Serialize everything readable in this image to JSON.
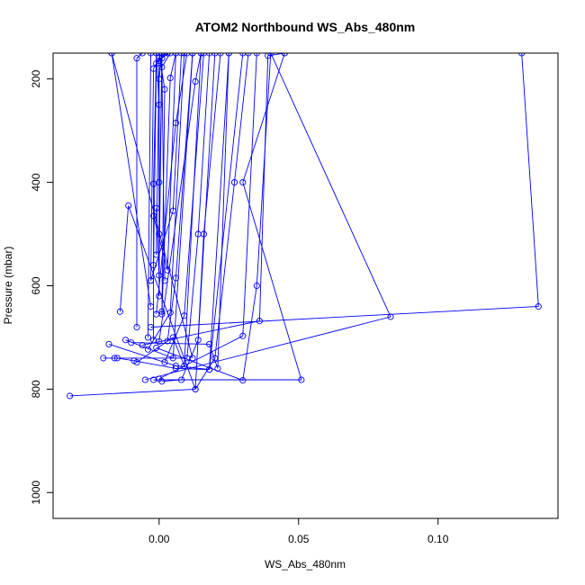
{
  "chart_data": {
    "type": "line",
    "title": "ATOM2 Northbound WS_Abs_480nm",
    "xlabel": "WS_Abs_480nm",
    "ylabel": "Pressure (mbar)",
    "xlim": [
      -0.038,
      0.143
    ],
    "ylim": [
      1050,
      150
    ],
    "y_reversed": true,
    "grid": false,
    "x_ticks": [
      {
        "value": 0.0,
        "label": "0.00"
      },
      {
        "value": 0.05,
        "label": "0.05"
      },
      {
        "value": 0.1,
        "label": "0.10"
      }
    ],
    "y_ticks": [
      {
        "value": 200,
        "label": "200"
      },
      {
        "value": 400,
        "label": "400"
      },
      {
        "value": 600,
        "label": "600"
      },
      {
        "value": 800,
        "label": "800"
      },
      {
        "value": 1000,
        "label": "1000"
      }
    ],
    "series_color": "#0000ff",
    "marker": "open-circle",
    "series": [
      {
        "x": [
          -0.032,
          0.013,
          0.02,
          0.027,
          0.032
        ],
        "y": [
          813,
          800,
          740,
          400,
          150
        ]
      },
      {
        "x": [
          -0.02,
          -0.016,
          0.01,
          0.014,
          0.018
        ],
        "y": [
          740,
          740,
          740,
          500,
          150
        ]
      },
      {
        "x": [
          -0.018,
          0.006,
          0.018,
          0.03
        ],
        "y": [
          713,
          755,
          762,
          150
        ]
      },
      {
        "x": [
          -0.015,
          -0.009,
          0.006,
          0.018,
          0.025
        ],
        "y": [
          740,
          745,
          760,
          762,
          150
        ]
      },
      {
        "x": [
          -0.014,
          -0.011,
          0.013,
          0.016,
          0.022
        ],
        "y": [
          650,
          445,
          800,
          500,
          150
        ]
      },
      {
        "x": [
          -0.012,
          0.005,
          0.012
        ],
        "y": [
          705,
          740,
          150
        ]
      },
      {
        "x": [
          -0.01,
          0.018,
          0.021,
          0.025
        ],
        "y": [
          710,
          713,
          760,
          150
        ]
      },
      {
        "x": [
          -0.008,
          0.005,
          0.009,
          0.015
        ],
        "y": [
          748,
          700,
          755,
          150
        ]
      },
      {
        "x": [
          -0.006,
          0.036,
          0.039,
          0.045
        ],
        "y": [
          715,
          668,
          155,
          150
        ]
      },
      {
        "x": [
          -0.005,
          0.083,
          0.04
        ],
        "y": [
          782,
          660,
          150
        ]
      },
      {
        "x": [
          -0.003,
          0.136,
          0.13
        ],
        "y": [
          680,
          640,
          150
        ]
      },
      {
        "x": [
          -0.002,
          0.051,
          0.03,
          0.045
        ],
        "y": [
          782,
          782,
          400,
          150
        ]
      },
      {
        "x": [
          -0.001,
          0.03,
          0.035,
          0.04
        ],
        "y": [
          720,
          783,
          600,
          150
        ]
      },
      {
        "x": [
          0.0,
          0.03,
          0.035
        ],
        "y": [
          780,
          697,
          150
        ]
      },
      {
        "x": [
          0.001,
          0.008,
          0.014,
          0.02
        ],
        "y": [
          785,
          782,
          705,
          150
        ]
      },
      {
        "x": [
          0.002,
          0.009,
          0.016
        ],
        "y": [
          748,
          658,
          150
        ]
      },
      {
        "x": [
          0.003,
          0.006,
          0.012
        ],
        "y": [
          707,
          585,
          150
        ]
      },
      {
        "x": [
          -0.004,
          0.004,
          0.009
        ],
        "y": [
          723,
          652,
          150
        ]
      },
      {
        "x": [
          -0.003,
          0.005,
          0.008
        ],
        "y": [
          590,
          455,
          150
        ]
      },
      {
        "x": [
          -0.002,
          0.003,
          0.006
        ],
        "y": [
          465,
          570,
          150
        ]
      },
      {
        "x": [
          -0.001,
          0.006,
          0.01
        ],
        "y": [
          655,
          285,
          150
        ]
      },
      {
        "x": [
          0.0,
          0.013,
          0.015
        ],
        "y": [
          708,
          205,
          150
        ]
      },
      {
        "x": [
          0.001,
          0.004,
          0.006
        ],
        "y": [
          655,
          198,
          150
        ]
      },
      {
        "x": [
          0.002,
          0.001,
          0.004
        ],
        "y": [
          590,
          177,
          150
        ]
      },
      {
        "x": [
          -0.003,
          -0.002,
          0.001
        ],
        "y": [
          590,
          180,
          150
        ]
      },
      {
        "x": [
          -0.002,
          -0.001,
          0.002
        ],
        "y": [
          560,
          170,
          150
        ]
      },
      {
        "x": [
          -0.001,
          0.0,
          0.003
        ],
        "y": [
          540,
          165,
          150
        ]
      },
      {
        "x": [
          0.0,
          0.001,
          0.002
        ],
        "y": [
          500,
          160,
          150
        ]
      },
      {
        "x": [
          -0.008,
          -0.008,
          -0.006
        ],
        "y": [
          680,
          160,
          150
        ]
      },
      {
        "x": [
          0.001,
          0.002,
          0.0
        ],
        "y": [
          650,
          220,
          150
        ]
      },
      {
        "x": [
          0.0,
          0.0,
          0.001
        ],
        "y": [
          620,
          200,
          150
        ]
      },
      {
        "x": [
          -0.002,
          -0.002,
          -0.001
        ],
        "y": [
          705,
          403,
          150
        ]
      },
      {
        "x": [
          -0.001,
          0.0,
          0.001
        ],
        "y": [
          450,
          580,
          150
        ]
      },
      {
        "x": [
          0.0,
          0.0,
          -0.001
        ],
        "y": [
          400,
          250,
          150
        ]
      },
      {
        "x": [
          -0.004,
          -0.003
        ],
        "y": [
          700,
          150
        ]
      },
      {
        "x": [
          -0.003,
          -0.017
        ],
        "y": [
          640,
          150
        ]
      },
      {
        "x": [
          0.012,
          -0.017
        ],
        "y": [
          740,
          150
        ]
      }
    ]
  }
}
